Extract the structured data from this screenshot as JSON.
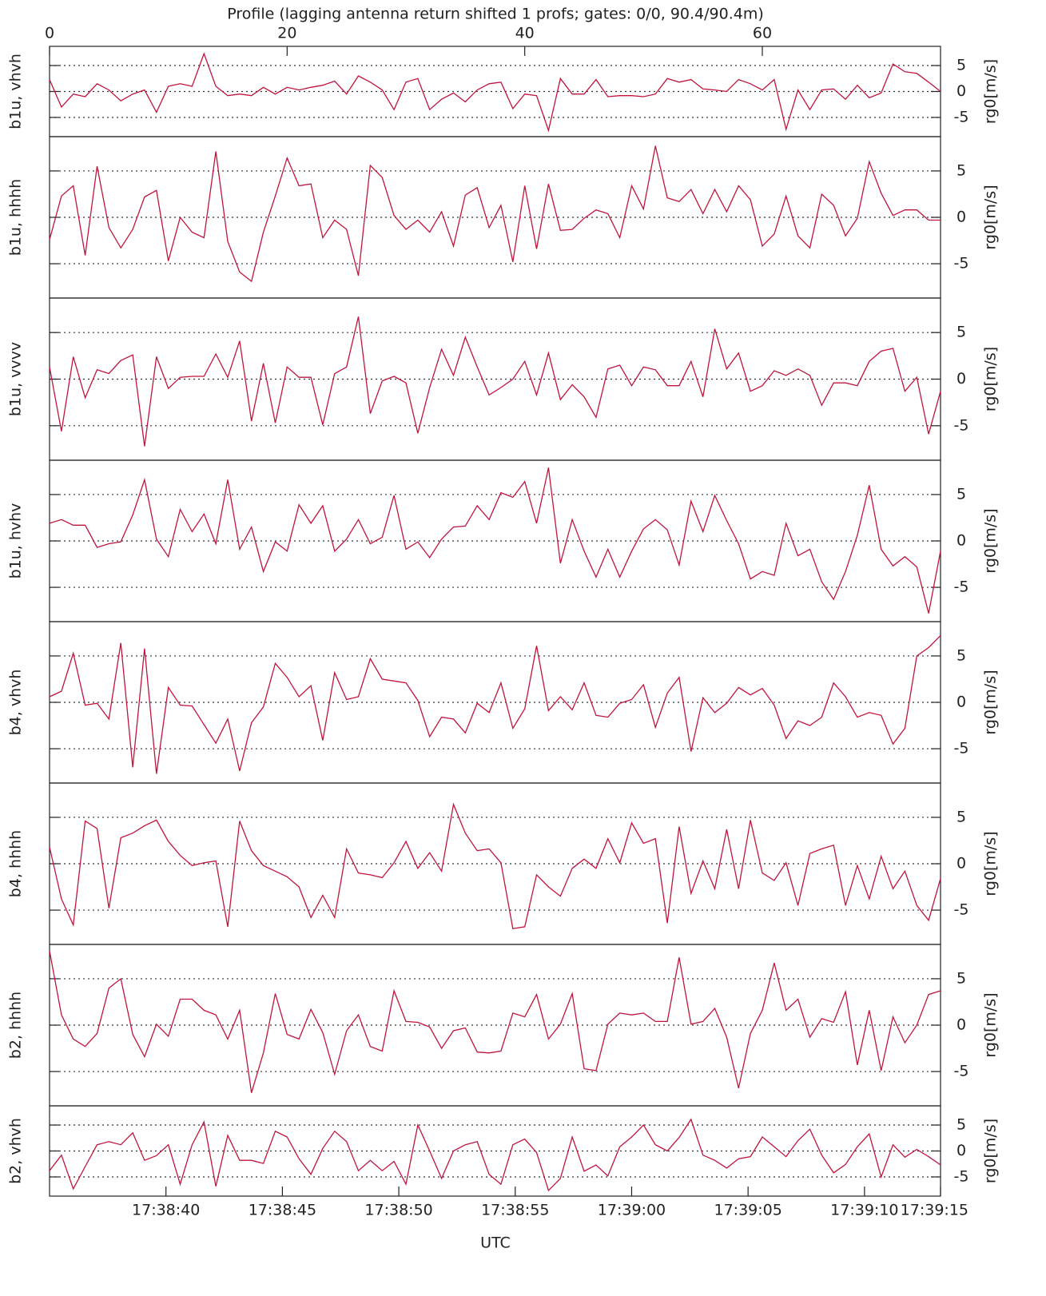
{
  "chart_data": [
    {
      "type": "line",
      "title": "Profile (lagging antenna return shifted 1 profs; gates: 0/0, 90.4/90.4m)",
      "x2ticks": [
        0,
        20,
        40,
        60
      ],
      "ylabel": "b1u, vhvh",
      "y2label": "rg0[m/s]",
      "ylim": [
        -8.7,
        8.7
      ],
      "yticks": [
        -5,
        0,
        5
      ],
      "xlim": [
        0,
        75
      ],
      "grid": true,
      "color": "#c0143c",
      "x": [
        0,
        1,
        2,
        3,
        4,
        5,
        6,
        7,
        8,
        9,
        10,
        11,
        12,
        13,
        14,
        15,
        16,
        17,
        18,
        19,
        20,
        21,
        22,
        23,
        24,
        25,
        26,
        27,
        28,
        29,
        30,
        31,
        32,
        33,
        34,
        35,
        36,
        37,
        38,
        39,
        40,
        41,
        42,
        43,
        44,
        45,
        46,
        47,
        48,
        49,
        50,
        51,
        52,
        53,
        54,
        55,
        56,
        57,
        58,
        59,
        60,
        61,
        62,
        63,
        64,
        65,
        66,
        67,
        68,
        69,
        70,
        71,
        72,
        73,
        74,
        75
      ],
      "values": [
        2.3,
        -3,
        -0.5,
        -1,
        1.5,
        0.3,
        -1.8,
        -0.5,
        0.3,
        -4,
        1,
        1.5,
        1,
        7.3,
        1,
        -0.8,
        -0.5,
        -0.8,
        0.8,
        -0.5,
        0.8,
        0.3,
        0.8,
        1.2,
        2,
        -0.5,
        3,
        1.8,
        0.3,
        -3.5,
        1.8,
        2.5,
        -3.5,
        -1.5,
        -0.3,
        -2,
        0.3,
        1.5,
        1.8,
        -3.3,
        -0.5,
        -0.8,
        -7.5,
        2.5,
        -0.5,
        -0.5,
        2.3,
        -1,
        -0.8,
        -0.8,
        -1,
        -0.5,
        2.5,
        1.8,
        2.3,
        0.5,
        0.3,
        0,
        2.3,
        1.5,
        0.3,
        2.3,
        -7.3,
        0.3,
        -3.5,
        0.3,
        0.5,
        -1.5,
        1.2,
        -1.2,
        -0.3,
        5.3,
        3.8,
        3.5,
        1.8,
        0
      ]
    },
    {
      "type": "line",
      "ylabel": "b1u, hhhh",
      "y2label": "rg0[m/s]",
      "ylim": [
        -8.7,
        8.7
      ],
      "yticks": [
        -5,
        0,
        5
      ],
      "xlim": [
        0,
        75
      ],
      "grid": true,
      "color": "#c0143c",
      "x": [
        0,
        1,
        2,
        3,
        4,
        5,
        6,
        7,
        8,
        9,
        10,
        11,
        12,
        13,
        14,
        15,
        16,
        17,
        18,
        19,
        20,
        21,
        22,
        23,
        24,
        25,
        26,
        27,
        28,
        29,
        30,
        31,
        32,
        33,
        34,
        35,
        36,
        37,
        38,
        39,
        40,
        41,
        42,
        43,
        44,
        45,
        46,
        47,
        48,
        49,
        50,
        51,
        52,
        53,
        54,
        55,
        56,
        57,
        58,
        59,
        60,
        61,
        62,
        63,
        64,
        65,
        66,
        67,
        68,
        69,
        70,
        71,
        72,
        73,
        74,
        75
      ],
      "values": [
        -2.4,
        2.3,
        3.4,
        -4.1,
        5.5,
        -1.1,
        -3.3,
        -1.3,
        2.2,
        2.9,
        -4.7,
        0,
        -1.6,
        -2.2,
        7.1,
        -2.6,
        -5.9,
        -6.9,
        -1.6,
        2.3,
        6.4,
        3.4,
        3.6,
        -2.2,
        -0.3,
        -1.3,
        -6.3,
        5.6,
        4.3,
        0.2,
        -1.3,
        -0.3,
        -1.6,
        0.6,
        -3.1,
        2.4,
        3.2,
        -1.1,
        1.3,
        -4.8,
        3.4,
        -3.4,
        3.6,
        -1.4,
        -1.3,
        -0.1,
        0.8,
        0.4,
        -2.2,
        3.4,
        0.9,
        7.7,
        2.1,
        1.7,
        3,
        0.4,
        3,
        0.6,
        3.4,
        1.9,
        -3.1,
        -1.8,
        2.3,
        -2,
        -3.3,
        2.5,
        1.3,
        -2,
        -0.1,
        6,
        2.6,
        0.2,
        0.8,
        0.8,
        -0.3,
        -0.3
      ]
    },
    {
      "type": "line",
      "ylabel": "b1u, vvvv",
      "y2label": "rg0[m/s]",
      "ylim": [
        -8.7,
        8.7
      ],
      "yticks": [
        -5,
        0,
        5
      ],
      "xlim": [
        0,
        75
      ],
      "grid": true,
      "color": "#c0143c",
      "x": [
        0,
        1,
        2,
        3,
        4,
        5,
        6,
        7,
        8,
        9,
        10,
        11,
        12,
        13,
        14,
        15,
        16,
        17,
        18,
        19,
        20,
        21,
        22,
        23,
        24,
        25,
        26,
        27,
        28,
        29,
        30,
        31,
        32,
        33,
        34,
        35,
        36,
        37,
        38,
        39,
        40,
        41,
        42,
        43,
        44,
        45,
        46,
        47,
        48,
        49,
        50,
        51,
        52,
        53,
        54,
        55,
        56,
        57,
        58,
        59,
        60,
        61,
        62,
        63,
        64,
        65,
        66,
        67,
        68,
        69,
        70,
        71,
        72,
        73,
        74,
        75
      ],
      "values": [
        1.3,
        -5.6,
        2.4,
        -2,
        1,
        0.6,
        2,
        2.6,
        -7.2,
        2.4,
        -1,
        0.2,
        0.3,
        0.3,
        2.7,
        0.2,
        4.1,
        -4.5,
        1.7,
        -4.7,
        1.3,
        0.2,
        0.2,
        -4.9,
        0.6,
        1.3,
        6.7,
        -3.7,
        -0.2,
        0.3,
        -0.4,
        -5.8,
        -0.9,
        3.2,
        0.4,
        4.5,
        1.3,
        -1.7,
        -0.9,
        0,
        1.9,
        -1.7,
        2.8,
        -2.2,
        -0.6,
        -1.9,
        -4.1,
        1.1,
        1.5,
        -0.7,
        1.3,
        1,
        -0.7,
        -0.7,
        1.9,
        -1.9,
        5.4,
        1.1,
        2.8,
        -1.3,
        -0.7,
        0.9,
        0.4,
        1.1,
        0.4,
        -2.8,
        -0.4,
        -0.4,
        -0.7,
        1.9,
        3,
        3.3,
        -1.3,
        0.2,
        -5.9,
        -1.3
      ]
    },
    {
      "type": "line",
      "ylabel": "b1u, hvhv",
      "y2label": "rg0[m/s]",
      "ylim": [
        -8.7,
        8.7
      ],
      "yticks": [
        -5,
        0,
        5
      ],
      "xlim": [
        0,
        75
      ],
      "grid": true,
      "color": "#c0143c",
      "x": [
        0,
        1,
        2,
        3,
        4,
        5,
        6,
        7,
        8,
        9,
        10,
        11,
        12,
        13,
        14,
        15,
        16,
        17,
        18,
        19,
        20,
        21,
        22,
        23,
        24,
        25,
        26,
        27,
        28,
        29,
        30,
        31,
        32,
        33,
        34,
        35,
        36,
        37,
        38,
        39,
        40,
        41,
        42,
        43,
        44,
        45,
        46,
        47,
        48,
        49,
        50,
        51,
        52,
        53,
        54,
        55,
        56,
        57,
        58,
        59,
        60,
        61,
        62,
        63,
        64,
        65,
        66,
        67,
        68,
        69,
        70,
        71,
        72,
        73,
        74,
        75
      ],
      "values": [
        1.9,
        2.3,
        1.7,
        1.7,
        -0.7,
        -0.3,
        -0.1,
        2.8,
        6.6,
        0.2,
        -1.7,
        3.4,
        1,
        2.9,
        -0.3,
        6.6,
        -0.9,
        1.5,
        -3.3,
        -0.1,
        -1.1,
        3.9,
        1.9,
        3.8,
        -1.1,
        0.2,
        2.3,
        -0.3,
        0.4,
        4.9,
        -0.9,
        -0.1,
        -1.8,
        0.2,
        1.5,
        1.6,
        3.8,
        2.3,
        5.2,
        4.7,
        6.4,
        1.9,
        7.9,
        -2.4,
        2.3,
        -1.1,
        -3.9,
        -0.9,
        -3.9,
        -1.1,
        1.3,
        2.3,
        1.2,
        -2.6,
        4.3,
        1,
        4.9,
        2.2,
        -0.3,
        -4.1,
        -3.3,
        -3.7,
        1.9,
        -1.6,
        -0.9,
        -4.4,
        -6.3,
        -3.3,
        0.6,
        6,
        -0.9,
        -2.7,
        -1.7,
        -2.8,
        -7.8,
        -1.1
      ]
    },
    {
      "type": "line",
      "ylabel": "b4, vhvh",
      "y2label": "rg0[m/s]",
      "ylim": [
        -8.7,
        8.7
      ],
      "yticks": [
        -5,
        0,
        5
      ],
      "xlim": [
        0,
        75
      ],
      "grid": true,
      "color": "#c0143c",
      "x": [
        0,
        1,
        2,
        3,
        4,
        5,
        6,
        7,
        8,
        9,
        10,
        11,
        12,
        13,
        14,
        15,
        16,
        17,
        18,
        19,
        20,
        21,
        22,
        23,
        24,
        25,
        26,
        27,
        28,
        29,
        30,
        31,
        32,
        33,
        34,
        35,
        36,
        37,
        38,
        39,
        40,
        41,
        42,
        43,
        44,
        45,
        46,
        47,
        48,
        49,
        50,
        51,
        52,
        53,
        54,
        55,
        56,
        57,
        58,
        59,
        60,
        61,
        62,
        63,
        64,
        65,
        66,
        67,
        68,
        69,
        70,
        71,
        72,
        73,
        74,
        75
      ],
      "values": [
        0.6,
        1.2,
        5.3,
        -0.3,
        -0.1,
        -1.8,
        6.4,
        -7,
        5.8,
        -7.7,
        1.6,
        -0.3,
        -0.4,
        -2.4,
        -4.4,
        -1.8,
        -7.4,
        -2.2,
        -0.5,
        4.2,
        2.7,
        0.6,
        1.8,
        -4.1,
        3.2,
        0.3,
        0.6,
        4.7,
        2.5,
        2.3,
        2.1,
        0.2,
        -3.7,
        -1.6,
        -1.8,
        -3.3,
        -0.1,
        -1.1,
        2.1,
        -2.8,
        -0.7,
        6.1,
        -0.9,
        0.6,
        -0.8,
        2.1,
        -1.4,
        -1.6,
        -0.1,
        0.3,
        1.9,
        -2.7,
        1,
        2.7,
        -5.3,
        0.5,
        -1.1,
        -0.1,
        1.6,
        0.8,
        1.5,
        -0.3,
        -3.9,
        -2,
        -2.5,
        -1.6,
        2.1,
        0.6,
        -1.6,
        -1.1,
        -1.4,
        -4.5,
        -2.8,
        5,
        5.9,
        7.2
      ]
    },
    {
      "type": "line",
      "ylabel": "b4, hhhh",
      "y2label": "rg0[m/s]",
      "ylim": [
        -8.7,
        8.7
      ],
      "yticks": [
        -5,
        0,
        5
      ],
      "xlim": [
        0,
        75
      ],
      "grid": true,
      "color": "#c0143c",
      "x": [
        0,
        1,
        2,
        3,
        4,
        5,
        6,
        7,
        8,
        9,
        10,
        11,
        12,
        13,
        14,
        15,
        16,
        17,
        18,
        19,
        20,
        21,
        22,
        23,
        24,
        25,
        26,
        27,
        28,
        29,
        30,
        31,
        32,
        33,
        34,
        35,
        36,
        37,
        38,
        39,
        40,
        41,
        42,
        43,
        44,
        45,
        46,
        47,
        48,
        49,
        50,
        51,
        52,
        53,
        54,
        55,
        56,
        57,
        58,
        59,
        60,
        61,
        62,
        63,
        64,
        65,
        66,
        67,
        68,
        69,
        70,
        71,
        72,
        73,
        74,
        75
      ],
      "values": [
        1.8,
        -3.8,
        -6.6,
        4.6,
        3.8,
        -4.8,
        2.8,
        3.3,
        4.1,
        4.7,
        2.4,
        0.9,
        -0.2,
        0.1,
        0.3,
        -6.8,
        4.6,
        1.4,
        -0.2,
        -0.8,
        -1.4,
        -2.5,
        -5.8,
        -3.4,
        -5.8,
        1.6,
        -1,
        -1.2,
        -1.5,
        0.1,
        2.4,
        -0.5,
        1.2,
        -0.8,
        6.4,
        3.3,
        1.4,
        1.6,
        0.1,
        -7,
        -6.8,
        -1.2,
        -2.5,
        -3.5,
        -0.5,
        0.5,
        -0.5,
        2.7,
        0.1,
        4.4,
        2.2,
        2.7,
        -6.4,
        4,
        -3.2,
        0.3,
        -2.7,
        3.7,
        -2.7,
        4.7,
        -1,
        -1.8,
        0.1,
        -4.5,
        1.1,
        1.6,
        2,
        -4.5,
        -0.2,
        -3.8,
        0.8,
        -2.7,
        -0.8,
        -4.5,
        -6.1,
        -1.6
      ]
    },
    {
      "type": "line",
      "ylabel": "b2, hhhh",
      "y2label": "rg0[m/s]",
      "ylim": [
        -8.7,
        8.7
      ],
      "yticks": [
        -5,
        0,
        5
      ],
      "xlim": [
        0,
        75
      ],
      "grid": true,
      "color": "#c0143c",
      "x": [
        0,
        1,
        2,
        3,
        4,
        5,
        6,
        7,
        8,
        9,
        10,
        11,
        12,
        13,
        14,
        15,
        16,
        17,
        18,
        19,
        20,
        21,
        22,
        23,
        24,
        25,
        26,
        27,
        28,
        29,
        30,
        31,
        32,
        33,
        34,
        35,
        36,
        37,
        38,
        39,
        40,
        41,
        42,
        43,
        44,
        45,
        46,
        47,
        48,
        49,
        50,
        51,
        52,
        53,
        54,
        55,
        56,
        57,
        58,
        59,
        60,
        61,
        62,
        63,
        64,
        65,
        66,
        67,
        68,
        69,
        70,
        71,
        72,
        73,
        74,
        75
      ],
      "values": [
        8,
        1.1,
        -1.5,
        -2.3,
        -0.9,
        4,
        5,
        -1,
        -3.4,
        0.1,
        -1.2,
        2.8,
        2.8,
        1.6,
        1.1,
        -1.5,
        1.6,
        -7.3,
        -3,
        3.4,
        -1,
        -1.5,
        1.7,
        -0.8,
        -5.3,
        -0.6,
        1.1,
        -2.3,
        -2.8,
        3.7,
        0.4,
        0.3,
        -0.2,
        -2.5,
        -0.6,
        -0.3,
        -2.9,
        -3,
        -2.8,
        1.3,
        0.9,
        3.3,
        -1.5,
        0.1,
        3.4,
        -4.7,
        -4.9,
        0.1,
        1.3,
        1.1,
        1.3,
        0.4,
        0.4,
        7.3,
        0.1,
        0.4,
        1.8,
        -1.3,
        -6.8,
        -0.9,
        1.6,
        6.7,
        1.6,
        2.8,
        -1.3,
        0.7,
        0.3,
        3.6,
        -4.3,
        1.6,
        -4.9,
        0.9,
        -1.9,
        0,
        3.3,
        3.7
      ]
    },
    {
      "type": "line",
      "ylabel": "b2, vhvh",
      "y2label": "rg0[m/s]",
      "ylim": [
        -8.7,
        8.7
      ],
      "yticks": [
        -5,
        0,
        5
      ],
      "xlim": [
        0,
        75
      ],
      "grid": true,
      "color": "#c0143c",
      "xlabel": "UTC",
      "xticks": [
        {
          "value": 9.8,
          "label": "17:38:40"
        },
        {
          "value": 19.6,
          "label": "17:38:45"
        },
        {
          "value": 29.4,
          "label": "17:38:50"
        },
        {
          "value": 39.2,
          "label": "17:38:55"
        },
        {
          "value": 49,
          "label": "17:39:00"
        },
        {
          "value": 58.8,
          "label": "17:39:05"
        },
        {
          "value": 68.6,
          "label": "17:39:10"
        },
        {
          "value": 75,
          "label": "17:39:15"
        }
      ],
      "x": [
        0,
        1,
        2,
        3,
        4,
        5,
        6,
        7,
        8,
        9,
        10,
        11,
        12,
        13,
        14,
        15,
        16,
        17,
        18,
        19,
        20,
        21,
        22,
        23,
        24,
        25,
        26,
        27,
        28,
        29,
        30,
        31,
        32,
        33,
        34,
        35,
        36,
        37,
        38,
        39,
        40,
        41,
        42,
        43,
        44,
        45,
        46,
        47,
        48,
        49,
        50,
        51,
        52,
        53,
        54,
        55,
        56,
        57,
        58,
        59,
        60,
        61,
        62,
        63,
        64,
        65,
        66,
        67,
        68,
        69,
        70,
        71,
        72,
        73,
        74,
        75
      ],
      "values": [
        -3.8,
        -0.8,
        -7.3,
        -3,
        1.2,
        1.8,
        1.2,
        3.5,
        -1.8,
        -0.9,
        1.2,
        -6.4,
        1.2,
        5.6,
        -6.8,
        3,
        -1.8,
        -1.8,
        -2.4,
        3.8,
        2.7,
        -1.5,
        -4.5,
        0.5,
        3.8,
        1.8,
        -3.8,
        -1.8,
        -3.8,
        -2,
        -6.4,
        5,
        0,
        -5.3,
        0,
        1.2,
        1.8,
        -4.5,
        -6.4,
        1.2,
        2.3,
        -0.3,
        -7.6,
        -5.3,
        2.7,
        -3.9,
        -2.7,
        -4.8,
        0.8,
        2.7,
        5,
        1.2,
        0,
        2.6,
        6.1,
        -0.8,
        -1.8,
        -3.3,
        -1.5,
        -1.1,
        2.7,
        0.8,
        -1.1,
        2,
        4.2,
        -0.8,
        -4.2,
        -2.6,
        0.8,
        3.3,
        -5,
        1.2,
        -1.2,
        0.3,
        -1.1,
        -2.7
      ]
    }
  ]
}
